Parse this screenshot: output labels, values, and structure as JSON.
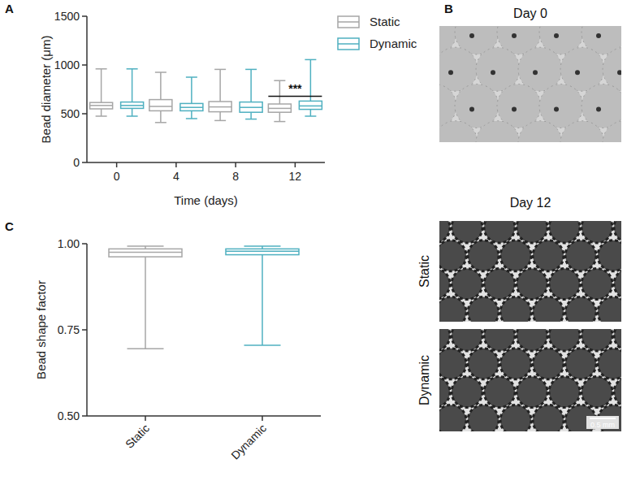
{
  "chart_data": [
    {
      "panel": "A",
      "type": "box",
      "x_label": "Time (days)",
      "y_label": "Bead diameter (μm)",
      "categories": [
        "0",
        "4",
        "8",
        "12"
      ],
      "ylim": [
        0,
        1500
      ],
      "yticks": [
        0,
        500,
        1000,
        1500
      ],
      "legend": "right",
      "series": [
        {
          "name": "Static",
          "color": "#a6a6a6",
          "min": [
            475,
            410,
            430,
            420
          ],
          "q1": [
            550,
            530,
            520,
            515
          ],
          "median": [
            585,
            575,
            570,
            555
          ],
          "q3": [
            615,
            645,
            625,
            600
          ],
          "max": [
            960,
            925,
            955,
            840
          ]
        },
        {
          "name": "Dynamic",
          "color": "#4fb0c0",
          "min": [
            475,
            450,
            445,
            475
          ],
          "q1": [
            555,
            530,
            515,
            545
          ],
          "median": [
            585,
            565,
            565,
            580
          ],
          "q3": [
            620,
            605,
            620,
            630
          ],
          "max": [
            960,
            875,
            955,
            1055
          ]
        }
      ],
      "annotations": [
        {
          "text": "***",
          "category": "12"
        }
      ]
    },
    {
      "panel": "C",
      "type": "box",
      "y_label": "Bead shape factor",
      "categories": [
        "Static",
        "Dynamic"
      ],
      "ylim": [
        0.5,
        1.0
      ],
      "yticks": [
        {
          "value": 0.5,
          "label": "0.50"
        },
        {
          "value": 0.75,
          "label": "0.75"
        },
        {
          "value": 1.0,
          "label": "1.00"
        }
      ],
      "colors": [
        "#a6a6a6",
        "#4fb0c0"
      ],
      "min": [
        0.695,
        0.705
      ],
      "q1": [
        0.962,
        0.968
      ],
      "median": [
        0.975,
        0.978
      ],
      "q3": [
        0.985,
        0.985
      ],
      "max": [
        0.993,
        0.993
      ]
    }
  ],
  "panel_b": {
    "label": "B",
    "titles": [
      "Day 0",
      "Day 12"
    ],
    "row_labels": [
      "Static",
      "Dynamic"
    ],
    "scale_bar": "0.5 mm"
  }
}
